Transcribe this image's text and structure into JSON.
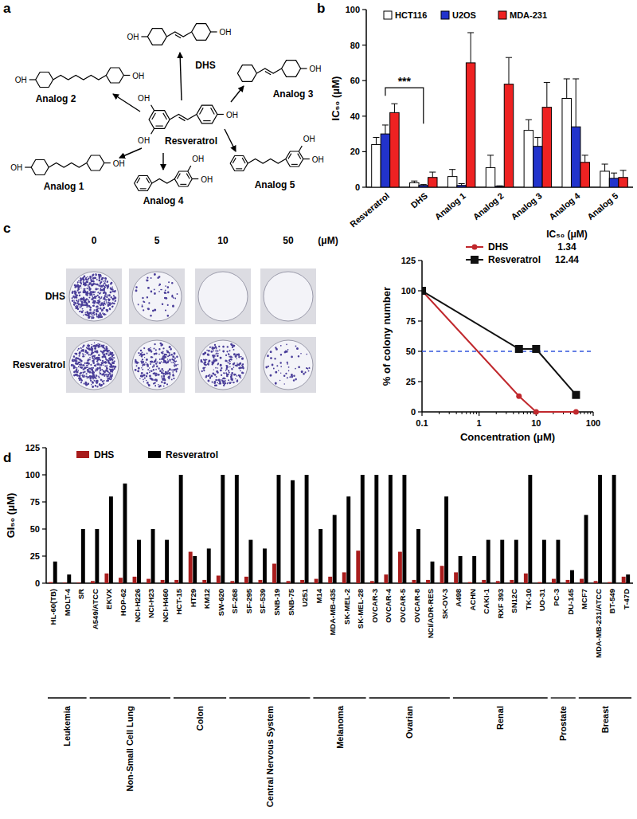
{
  "structures": {
    "panel_label": "a",
    "oh": "OH",
    "molecules": [
      "Resveratrol",
      "DHS",
      "Analog 2",
      "Analog 3",
      "Analog 1",
      "Analog 4",
      "Analog 5"
    ]
  },
  "colony_assay": {
    "rows": [
      "DHS",
      "Resveratrol"
    ],
    "concentrations": [
      0,
      5,
      10,
      50
    ],
    "unit": "(μM)"
  },
  "chart_data": [
    {
      "panel_label": "b",
      "type": "bar",
      "ylabel": "IC₅₀ (μM)",
      "categories": [
        "Resveratrol",
        "DHS",
        "Analog 1",
        "Analog 2",
        "Analog 3",
        "Analog 4",
        "Analog 5"
      ],
      "series": [
        {
          "name": "HCT116",
          "color": "#ffffff",
          "values": [
            24,
            2.5,
            6,
            11,
            32,
            50,
            9
          ],
          "errors": [
            4,
            1,
            4,
            7,
            6,
            11,
            4
          ]
        },
        {
          "name": "U2OS",
          "color": "#2233cc",
          "values": [
            30,
            1,
            1,
            0.5,
            23,
            34,
            5
          ],
          "errors": [
            5,
            0.5,
            1,
            0.3,
            5,
            27,
            3
          ]
        },
        {
          "name": "MDA-231",
          "color": "#ee2222",
          "values": [
            42,
            5.5,
            70,
            58,
            45,
            14,
            5.5
          ],
          "errors": [
            5,
            3,
            17,
            15,
            14,
            4,
            4
          ]
        }
      ],
      "ylim": [
        0,
        100
      ],
      "yticks": [
        0,
        20,
        40,
        60,
        80,
        100
      ],
      "annotation": "***",
      "legend": "top-left"
    },
    {
      "panel_label": "c",
      "type": "line",
      "log": "x",
      "xlabel": "Concentration (μM)",
      "ylabel": "% of colony number",
      "xlim": [
        0.1,
        100
      ],
      "xticks": [
        0.1,
        1,
        10,
        100
      ],
      "ylim": [
        0,
        125
      ],
      "yticks": [
        0,
        25,
        50,
        75,
        100,
        125
      ],
      "reference_line": 50,
      "ic50_title": "IC₅₀ (μM)",
      "legend": "top-right",
      "series": [
        {
          "name": "DHS",
          "color": "#c0282d",
          "marker": "circle",
          "x": [
            0.1,
            5,
            10,
            50
          ],
          "values": [
            100,
            13,
            0,
            0
          ],
          "ic50": 1.34
        },
        {
          "name": "Resveratrol",
          "color": "#111111",
          "marker": "square",
          "x": [
            0.1,
            5,
            10,
            50
          ],
          "values": [
            100,
            52,
            52,
            14
          ],
          "ic50": 12.44
        }
      ]
    },
    {
      "panel_label": "d",
      "type": "bar",
      "ylabel": "GI₅₀ (μM)",
      "categories": [
        "HL-60(TB)",
        "MOLT-4",
        "SR",
        "A549/ATCC",
        "EKVX",
        "HOP-62",
        "NCI-H226",
        "NCI-H23",
        "NCI-H460",
        "HCT-15",
        "HT29",
        "KM12",
        "SW-620",
        "SF-268",
        "SF-295",
        "SF-539",
        "SNB-19",
        "SNB-75",
        "U251",
        "M14",
        "MDA-MB-435",
        "SK-MEL-2",
        "SK-MEL-28",
        "OVCAR-3",
        "OVCAR-4",
        "OVCAR-5",
        "OVCAR-8",
        "NCI/ADR-RES",
        "SK-OV-3",
        "A498",
        "ACHN",
        "CAKI-1",
        "RXF 393",
        "SN12C",
        "TK-10",
        "UO-31",
        "PC-3",
        "DU-145",
        "MCF7",
        "MDA-MB-231/ATCC",
        "BT-549",
        "T-47D"
      ],
      "series": [
        {
          "name": "DHS",
          "color": "#a81c1c",
          "values": [
            1,
            0.5,
            0.5,
            2,
            9,
            5,
            6,
            4,
            3,
            3,
            29,
            3,
            7,
            2,
            6,
            3,
            18,
            2,
            3,
            4,
            6,
            10,
            30,
            2,
            8,
            29,
            3,
            3,
            16,
            10,
            1,
            3,
            2,
            3,
            9,
            1,
            4,
            3,
            4,
            2,
            1,
            6
          ]
        },
        {
          "name": "Resveratrol",
          "color": "#000000",
          "values": [
            20,
            8,
            50,
            50,
            80,
            92,
            40,
            50,
            40,
            100,
            25,
            32,
            100,
            100,
            40,
            32,
            100,
            95,
            100,
            50,
            63,
            80,
            100,
            100,
            100,
            100,
            50,
            20,
            80,
            25,
            25,
            40,
            40,
            40,
            100,
            40,
            40,
            12,
            63,
            100,
            100,
            8
          ]
        }
      ],
      "groups": [
        {
          "label": "Leukemia",
          "size": 3
        },
        {
          "label": "Non-Small Cell Lung",
          "size": 6
        },
        {
          "label": "Colon",
          "size": 4
        },
        {
          "label": "Central Nervous System",
          "size": 6
        },
        {
          "label": "Melanoma",
          "size": 4
        },
        {
          "label": "Ovarian",
          "size": 6
        },
        {
          "label": "Renal",
          "size": 7
        },
        {
          "label": "Prostate",
          "size": 2
        },
        {
          "label": "Breast",
          "size": 4
        }
      ],
      "ylim": [
        0,
        125
      ],
      "yticks": [
        0,
        25,
        50,
        75,
        100,
        125
      ],
      "legend": "top-left"
    }
  ]
}
